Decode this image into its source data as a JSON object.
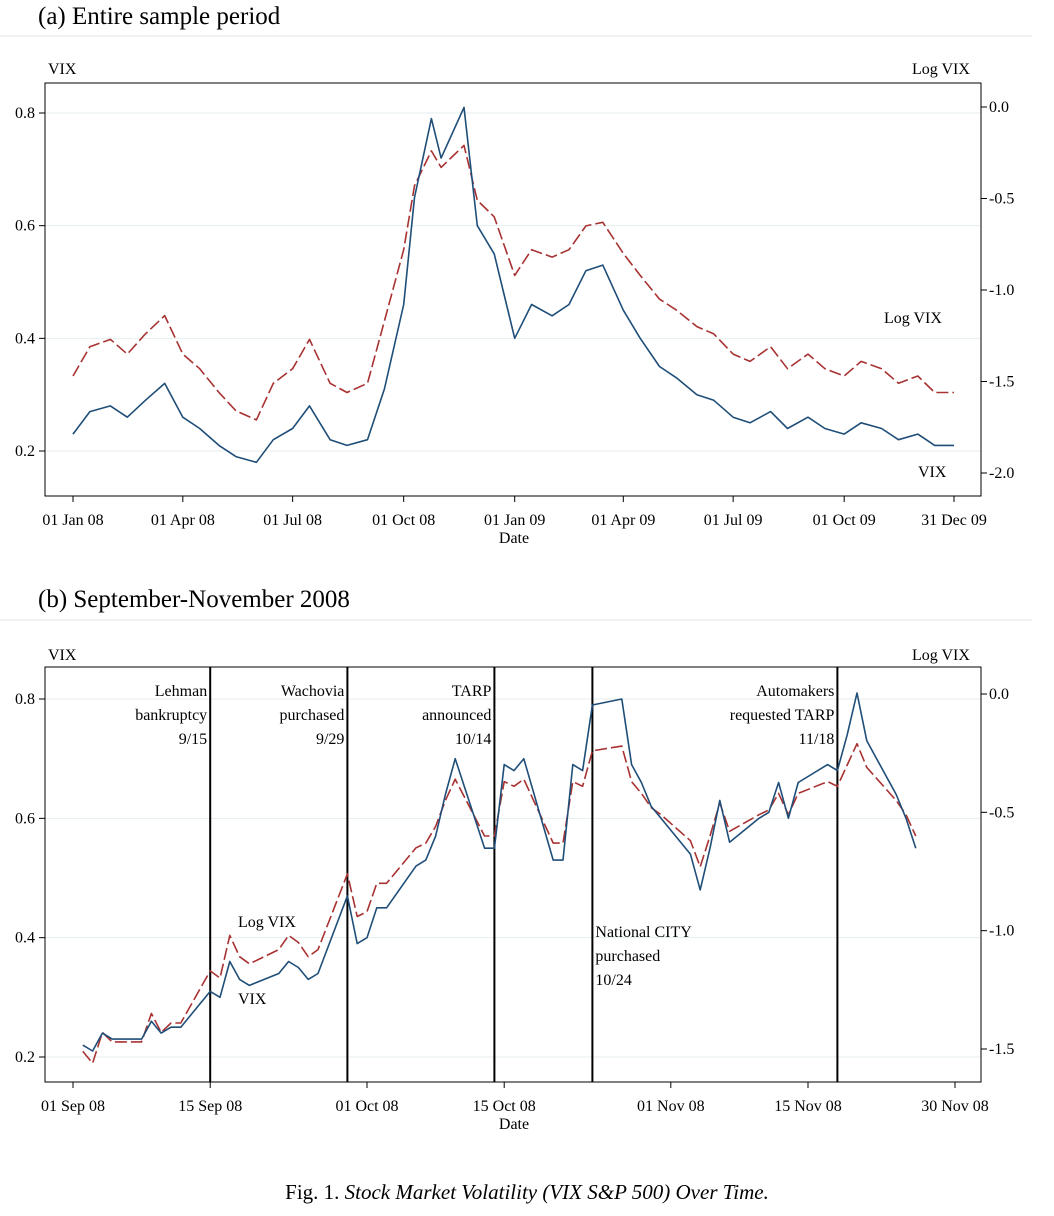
{
  "chart_data": [
    {
      "type": "line",
      "title": "(a)  Entire sample period",
      "xlabel": "Date",
      "ylabel_left": "VIX",
      "ylabel_right": "Log VIX",
      "x_ticks": [
        "01 Jan 08",
        "01 Apr 08",
        "01 Jul 08",
        "01 Oct 08",
        "01 Jan 09",
        "01 Apr 09",
        "01 Jul 09",
        "01 Oct 09",
        "31 Dec 09"
      ],
      "ylim_left": [
        0.15,
        0.85
      ],
      "yticks_left": [
        "0.2",
        "0.4",
        "0.6",
        "0.8"
      ],
      "yticks_right": [
        "0.0",
        "-0.5",
        "-1.0",
        "-1.5",
        "-2.0"
      ],
      "grid": true,
      "series_labels": {
        "log": "Log VIX",
        "vix": "VIX"
      },
      "series": [
        {
          "name": "VIX",
          "axis": "left",
          "color": "#1f4e79",
          "style": "solid",
          "x": [
            "2008-01-01",
            "2008-01-15",
            "2008-02-01",
            "2008-02-15",
            "2008-03-01",
            "2008-03-17",
            "2008-04-01",
            "2008-04-15",
            "2008-05-01",
            "2008-05-15",
            "2008-06-01",
            "2008-06-15",
            "2008-07-01",
            "2008-07-15",
            "2008-08-01",
            "2008-08-15",
            "2008-09-01",
            "2008-09-15",
            "2008-10-01",
            "2008-10-10",
            "2008-10-24",
            "2008-11-01",
            "2008-11-20",
            "2008-12-01",
            "2008-12-15",
            "2009-01-01",
            "2009-01-15",
            "2009-02-01",
            "2009-02-15",
            "2009-03-01",
            "2009-03-15",
            "2009-04-01",
            "2009-04-15",
            "2009-05-01",
            "2009-05-15",
            "2009-06-01",
            "2009-06-15",
            "2009-07-01",
            "2009-07-15",
            "2009-08-01",
            "2009-08-15",
            "2009-09-01",
            "2009-09-15",
            "2009-10-01",
            "2009-10-15",
            "2009-11-01",
            "2009-11-15",
            "2009-12-01",
            "2009-12-15",
            "2009-12-31"
          ],
          "values": [
            0.23,
            0.27,
            0.28,
            0.26,
            0.29,
            0.32,
            0.26,
            0.24,
            0.21,
            0.19,
            0.18,
            0.22,
            0.24,
            0.28,
            0.22,
            0.21,
            0.22,
            0.31,
            0.46,
            0.65,
            0.79,
            0.72,
            0.81,
            0.6,
            0.55,
            0.4,
            0.46,
            0.44,
            0.46,
            0.52,
            0.53,
            0.45,
            0.4,
            0.35,
            0.33,
            0.3,
            0.29,
            0.26,
            0.25,
            0.27,
            0.24,
            0.26,
            0.24,
            0.23,
            0.25,
            0.24,
            0.22,
            0.23,
            0.21,
            0.21
          ]
        },
        {
          "name": "Log VIX",
          "axis": "right",
          "color": "#a83232",
          "style": "dashed",
          "x": [
            "2008-01-01",
            "2008-01-15",
            "2008-02-01",
            "2008-02-15",
            "2008-03-01",
            "2008-03-17",
            "2008-04-01",
            "2008-04-15",
            "2008-05-01",
            "2008-05-15",
            "2008-06-01",
            "2008-06-15",
            "2008-07-01",
            "2008-07-15",
            "2008-08-01",
            "2008-08-15",
            "2008-09-01",
            "2008-09-15",
            "2008-10-01",
            "2008-10-10",
            "2008-10-24",
            "2008-11-01",
            "2008-11-20",
            "2008-12-01",
            "2008-12-15",
            "2009-01-01",
            "2009-01-15",
            "2009-02-01",
            "2009-02-15",
            "2009-03-01",
            "2009-03-15",
            "2009-04-01",
            "2009-04-15",
            "2009-05-01",
            "2009-05-15",
            "2009-06-01",
            "2009-06-15",
            "2009-07-01",
            "2009-07-15",
            "2009-08-01",
            "2009-08-15",
            "2009-09-01",
            "2009-09-15",
            "2009-10-01",
            "2009-10-15",
            "2009-11-01",
            "2009-11-15",
            "2009-12-01",
            "2009-12-15",
            "2009-12-31"
          ],
          "values": [
            -1.47,
            -1.31,
            -1.27,
            -1.35,
            -1.24,
            -1.14,
            -1.35,
            -1.43,
            -1.56,
            -1.66,
            -1.71,
            -1.51,
            -1.43,
            -1.27,
            -1.51,
            -1.56,
            -1.51,
            -1.17,
            -0.78,
            -0.43,
            -0.24,
            -0.33,
            -0.21,
            -0.51,
            -0.6,
            -0.92,
            -0.78,
            -0.82,
            -0.78,
            -0.65,
            -0.63,
            -0.8,
            -0.92,
            -1.05,
            -1.11,
            -1.2,
            -1.24,
            -1.35,
            -1.39,
            -1.31,
            -1.43,
            -1.35,
            -1.43,
            -1.47,
            -1.39,
            -1.43,
            -1.51,
            -1.47,
            -1.56,
            -1.56
          ]
        }
      ],
      "annotations": []
    },
    {
      "type": "line",
      "title": "(b)  September-November 2008",
      "xlabel": "Date",
      "ylabel_left": "VIX",
      "ylabel_right": "Log VIX",
      "x_ticks": [
        "01 Sep 08",
        "15 Sep 08",
        "01 Oct 08",
        "15 Oct 08",
        "01 Nov 08",
        "15 Nov 08",
        "30 Nov 08"
      ],
      "ylim_left": [
        0.18,
        0.85
      ],
      "yticks_left": [
        "0.2",
        "0.4",
        "0.6",
        "0.8"
      ],
      "yticks_right": [
        "0.0",
        "-0.5",
        "-1.0",
        "-1.5"
      ],
      "grid": true,
      "series_labels": {
        "log": "Log VIX",
        "vix": "VIX"
      },
      "series": [
        {
          "name": "VIX",
          "axis": "left",
          "color": "#1f4e79",
          "style": "solid",
          "x": [
            "2008-09-02",
            "2008-09-03",
            "2008-09-04",
            "2008-09-05",
            "2008-09-08",
            "2008-09-09",
            "2008-09-10",
            "2008-09-11",
            "2008-09-12",
            "2008-09-15",
            "2008-09-16",
            "2008-09-17",
            "2008-09-18",
            "2008-09-19",
            "2008-09-22",
            "2008-09-23",
            "2008-09-24",
            "2008-09-25",
            "2008-09-26",
            "2008-09-29",
            "2008-09-30",
            "2008-10-01",
            "2008-10-02",
            "2008-10-03",
            "2008-10-06",
            "2008-10-07",
            "2008-10-08",
            "2008-10-09",
            "2008-10-10",
            "2008-10-13",
            "2008-10-14",
            "2008-10-15",
            "2008-10-16",
            "2008-10-17",
            "2008-10-20",
            "2008-10-21",
            "2008-10-22",
            "2008-10-23",
            "2008-10-24",
            "2008-10-27",
            "2008-10-28",
            "2008-10-29",
            "2008-10-30",
            "2008-10-31",
            "2008-11-03",
            "2008-11-04",
            "2008-11-05",
            "2008-11-06",
            "2008-11-07",
            "2008-11-10",
            "2008-11-11",
            "2008-11-12",
            "2008-11-13",
            "2008-11-14",
            "2008-11-17",
            "2008-11-18",
            "2008-11-19",
            "2008-11-20",
            "2008-11-21",
            "2008-11-24",
            "2008-11-25",
            "2008-11-26"
          ],
          "values": [
            0.22,
            0.21,
            0.24,
            0.23,
            0.23,
            0.26,
            0.24,
            0.25,
            0.25,
            0.31,
            0.3,
            0.36,
            0.33,
            0.32,
            0.34,
            0.36,
            0.35,
            0.33,
            0.34,
            0.47,
            0.39,
            0.4,
            0.45,
            0.45,
            0.52,
            0.53,
            0.57,
            0.64,
            0.7,
            0.55,
            0.55,
            0.69,
            0.68,
            0.7,
            0.53,
            0.53,
            0.69,
            0.68,
            0.79,
            0.8,
            0.69,
            0.66,
            0.62,
            0.6,
            0.54,
            0.48,
            0.55,
            0.63,
            0.56,
            0.6,
            0.61,
            0.66,
            0.6,
            0.66,
            0.69,
            0.68,
            0.74,
            0.81,
            0.73,
            0.64,
            0.6,
            0.55
          ]
        },
        {
          "name": "Log VIX",
          "axis": "right",
          "color": "#a83232",
          "style": "dashed",
          "x": [
            "2008-09-02",
            "2008-09-03",
            "2008-09-04",
            "2008-09-05",
            "2008-09-08",
            "2008-09-09",
            "2008-09-10",
            "2008-09-11",
            "2008-09-12",
            "2008-09-15",
            "2008-09-16",
            "2008-09-17",
            "2008-09-18",
            "2008-09-19",
            "2008-09-22",
            "2008-09-23",
            "2008-09-24",
            "2008-09-25",
            "2008-09-26",
            "2008-09-29",
            "2008-09-30",
            "2008-10-01",
            "2008-10-02",
            "2008-10-03",
            "2008-10-06",
            "2008-10-07",
            "2008-10-08",
            "2008-10-09",
            "2008-10-10",
            "2008-10-13",
            "2008-10-14",
            "2008-10-15",
            "2008-10-16",
            "2008-10-17",
            "2008-10-20",
            "2008-10-21",
            "2008-10-22",
            "2008-10-23",
            "2008-10-24",
            "2008-10-27",
            "2008-10-28",
            "2008-10-29",
            "2008-10-30",
            "2008-10-31",
            "2008-11-03",
            "2008-11-04",
            "2008-11-05",
            "2008-11-06",
            "2008-11-07",
            "2008-11-10",
            "2008-11-11",
            "2008-11-12",
            "2008-11-13",
            "2008-11-14",
            "2008-11-17",
            "2008-11-18",
            "2008-11-19",
            "2008-11-20",
            "2008-11-21",
            "2008-11-24",
            "2008-11-25",
            "2008-11-26"
          ],
          "values": [
            -1.51,
            -1.56,
            -1.43,
            -1.47,
            -1.47,
            -1.35,
            -1.43,
            -1.39,
            -1.39,
            -1.17,
            -1.2,
            -1.02,
            -1.11,
            -1.14,
            -1.08,
            -1.02,
            -1.05,
            -1.11,
            -1.08,
            -0.76,
            -0.94,
            -0.92,
            -0.8,
            -0.8,
            -0.65,
            -0.63,
            -0.56,
            -0.45,
            -0.36,
            -0.6,
            -0.6,
            -0.37,
            -0.39,
            -0.36,
            -0.63,
            -0.63,
            -0.37,
            -0.39,
            -0.24,
            -0.22,
            -0.37,
            -0.42,
            -0.48,
            -0.51,
            -0.62,
            -0.73,
            -0.6,
            -0.46,
            -0.58,
            -0.51,
            -0.49,
            -0.42,
            -0.51,
            -0.42,
            -0.37,
            -0.39,
            -0.3,
            -0.21,
            -0.31,
            -0.45,
            -0.51,
            -0.6
          ]
        }
      ],
      "events": [
        {
          "date": "2008-09-15",
          "lines": [
            "Lehman",
            "bankruptcy",
            "9/15"
          ],
          "label_side": "left",
          "label_pos": "top"
        },
        {
          "date": "2008-09-29",
          "lines": [
            "Wachovia",
            "purchased",
            "9/29"
          ],
          "label_side": "left",
          "label_pos": "top"
        },
        {
          "date": "2008-10-14",
          "lines": [
            "TARP",
            "announced",
            "10/14"
          ],
          "label_side": "left",
          "label_pos": "top"
        },
        {
          "date": "2008-10-24",
          "lines": [
            "National CITY",
            "purchased",
            "10/24"
          ],
          "label_side": "right",
          "label_pos": "middle"
        },
        {
          "date": "2008-11-18",
          "lines": [
            "Automakers",
            "requested TARP",
            "11/18"
          ],
          "label_side": "left",
          "label_pos": "top"
        }
      ]
    }
  ],
  "caption": {
    "prefix": "Fig. 1. ",
    "text": "Stock Market Volatility (VIX S&P 500) Over Time."
  }
}
